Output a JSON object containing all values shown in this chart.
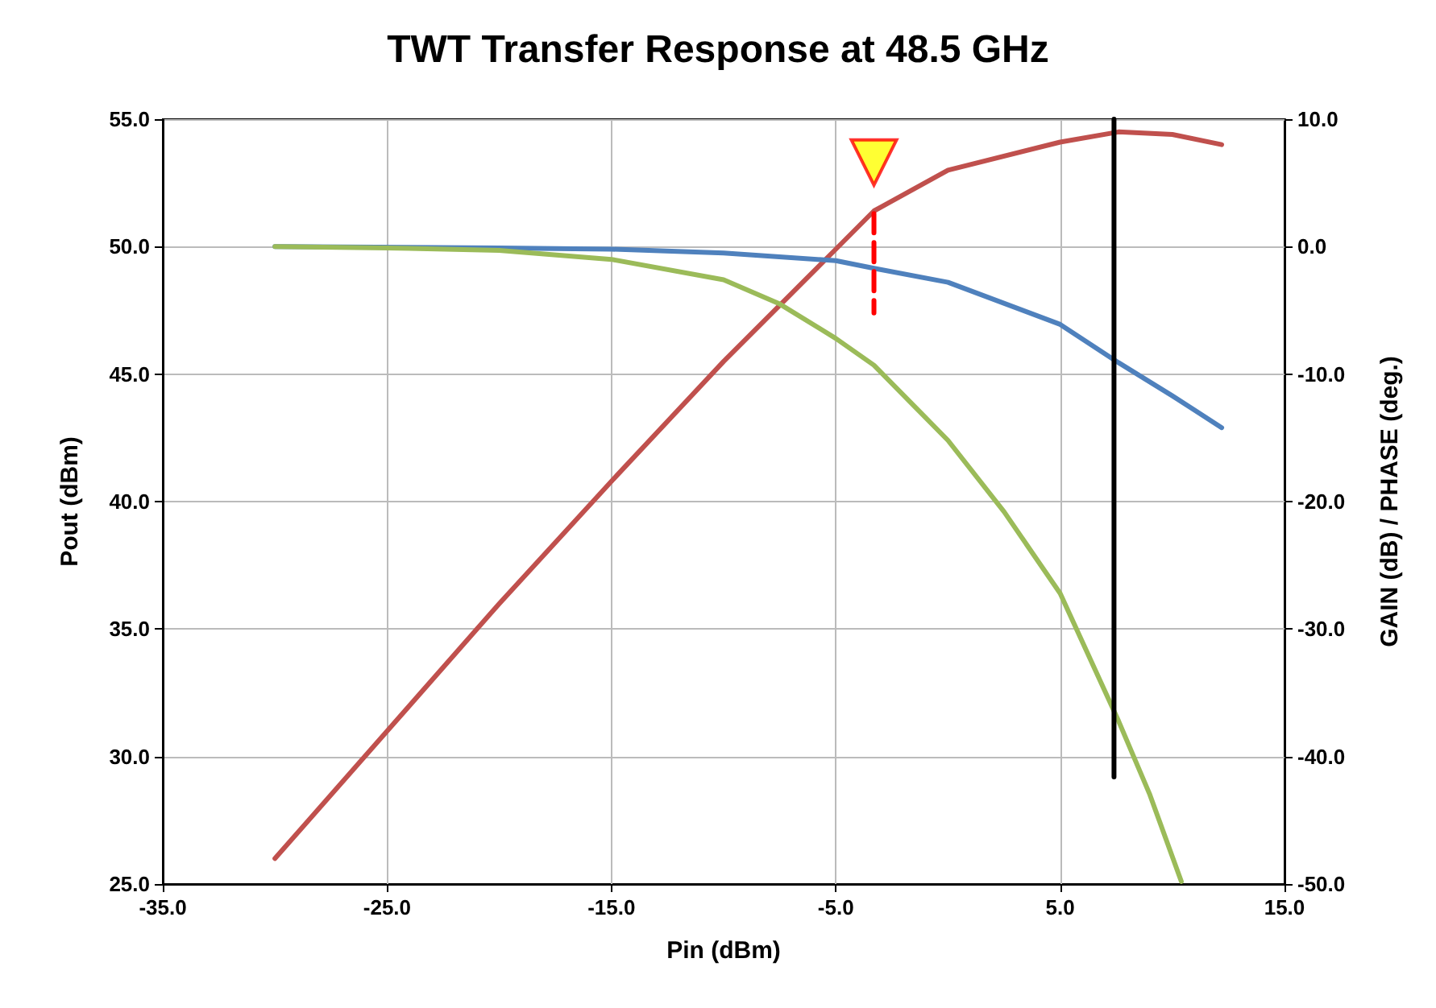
{
  "chart_data": {
    "type": "line",
    "title": "TWT Transfer Response at 48.5 GHz",
    "xlabel": "Pin (dBm)",
    "ylabel": "Pout (dBm)",
    "y2label": "GAIN (dB) / PHASE (deg.)",
    "xlim": [
      -35,
      15
    ],
    "xticks": [
      {
        "value": -35,
        "label": "-35.0"
      },
      {
        "value": -25,
        "label": "-25.0"
      },
      {
        "value": -15,
        "label": "-15.0"
      },
      {
        "value": -5,
        "label": "-5.0"
      },
      {
        "value": 5,
        "label": "5.0"
      },
      {
        "value": 15,
        "label": "15.0"
      }
    ],
    "ylim": [
      25,
      55
    ],
    "yticks": [
      {
        "value": 25,
        "label": "25.0"
      },
      {
        "value": 30,
        "label": "30.0"
      },
      {
        "value": 35,
        "label": "35.0"
      },
      {
        "value": 40,
        "label": "40.0"
      },
      {
        "value": 45,
        "label": "45.0"
      },
      {
        "value": 50,
        "label": "50.0"
      },
      {
        "value": 55,
        "label": "55.0"
      }
    ],
    "y2lim": [
      -50,
      10
    ],
    "y2ticks": [
      {
        "value": -50,
        "label": "-50.0"
      },
      {
        "value": -40,
        "label": "-40.0"
      },
      {
        "value": -30,
        "label": "-30.0"
      },
      {
        "value": -20,
        "label": "-20.0"
      },
      {
        "value": -10,
        "label": "-10.0"
      },
      {
        "value": 0,
        "label": "0.0"
      },
      {
        "value": 10,
        "label": "10.0"
      }
    ],
    "grid": true,
    "marker": "none",
    "series": [
      {
        "color": "#c0504d",
        "x": [
          -30,
          -25,
          -20,
          -15,
          -10,
          -5,
          -3.3,
          0,
          5,
          7.6,
          10,
          12.2
        ],
        "values": [
          26,
          31,
          36,
          40.8,
          45.5,
          49.9,
          51.4,
          53,
          54.1,
          54.5,
          54.4,
          54
        ]
      },
      {
        "color": "#4f81bd",
        "axis": "y2",
        "x": [
          -30,
          -20,
          -15,
          -10,
          -5,
          -3.3,
          0,
          5,
          7.6,
          10,
          12.2
        ],
        "values": [
          0,
          -0.1,
          -0.2,
          -0.5,
          -1.1,
          -1.7,
          -2.8,
          -6.1,
          -9.1,
          -11.7,
          -14.2
        ]
      },
      {
        "color": "#9bbb59",
        "axis": "y2",
        "x": [
          -30,
          -25,
          -20,
          -15,
          -10,
          -7.5,
          -5,
          -3.3,
          0,
          2.5,
          5,
          7.6,
          9,
          10.4
        ],
        "values": [
          0,
          -0.1,
          -0.3,
          -1,
          -2.6,
          -4.5,
          -7.2,
          -9.3,
          -15.2,
          -20.8,
          -27.2,
          -37.2,
          -43,
          -49.8
        ]
      },
      {
        "color": "#000000",
        "x": [
          7.4,
          7.4
        ],
        "values": [
          55,
          29.2
        ]
      },
      {
        "color": "#ff0000",
        "line_style": "dashed",
        "x": [
          -3.3,
          -3.3
        ],
        "values": [
          51.3,
          47.4
        ]
      },
      {
        "type": "scatter",
        "marker": "triangle",
        "color": "#ffff00",
        "x": [
          -3.3
        ],
        "values": [
          53.3
        ]
      }
    ]
  }
}
